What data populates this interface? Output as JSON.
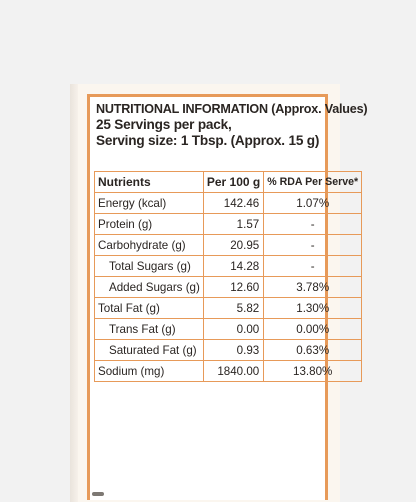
{
  "panel": {
    "title": "NUTRITIONAL INFORMATION (Approx. Values)",
    "servings": "25 Servings per pack,",
    "serving_size": "Serving size: 1 Tbsp. (Approx. 15 g)"
  },
  "table": {
    "headers": [
      "Nutrients",
      "Per 100 g",
      "% RDA Per Serve*"
    ],
    "rows": [
      {
        "name": "Energy (kcal)",
        "per100": "142.46",
        "rda": "1.07%"
      },
      {
        "name": "Protein (g)",
        "per100": "1.57",
        "rda": "-"
      },
      {
        "name": "Carbohydrate (g)",
        "per100": "20.95",
        "rda": "-"
      },
      {
        "name": "Total Sugars (g)",
        "per100": "14.28",
        "rda": "-"
      },
      {
        "name": "Added Sugars (g)",
        "per100": "12.60",
        "rda": "3.78%"
      },
      {
        "name": "Total Fat (g)",
        "per100": "5.82",
        "rda": "1.30%"
      },
      {
        "name": "Trans Fat (g)",
        "per100": "0.00",
        "rda": "0.00%"
      },
      {
        "name": "Saturated Fat (g)",
        "per100": "0.93",
        "rda": "0.63%"
      },
      {
        "name": "Sodium (mg)",
        "per100": "1840.00",
        "rda": "13.80%"
      }
    ]
  },
  "colors": {
    "border": "#e79a59",
    "text": "#2a2522",
    "background": "#f2f2f2"
  }
}
